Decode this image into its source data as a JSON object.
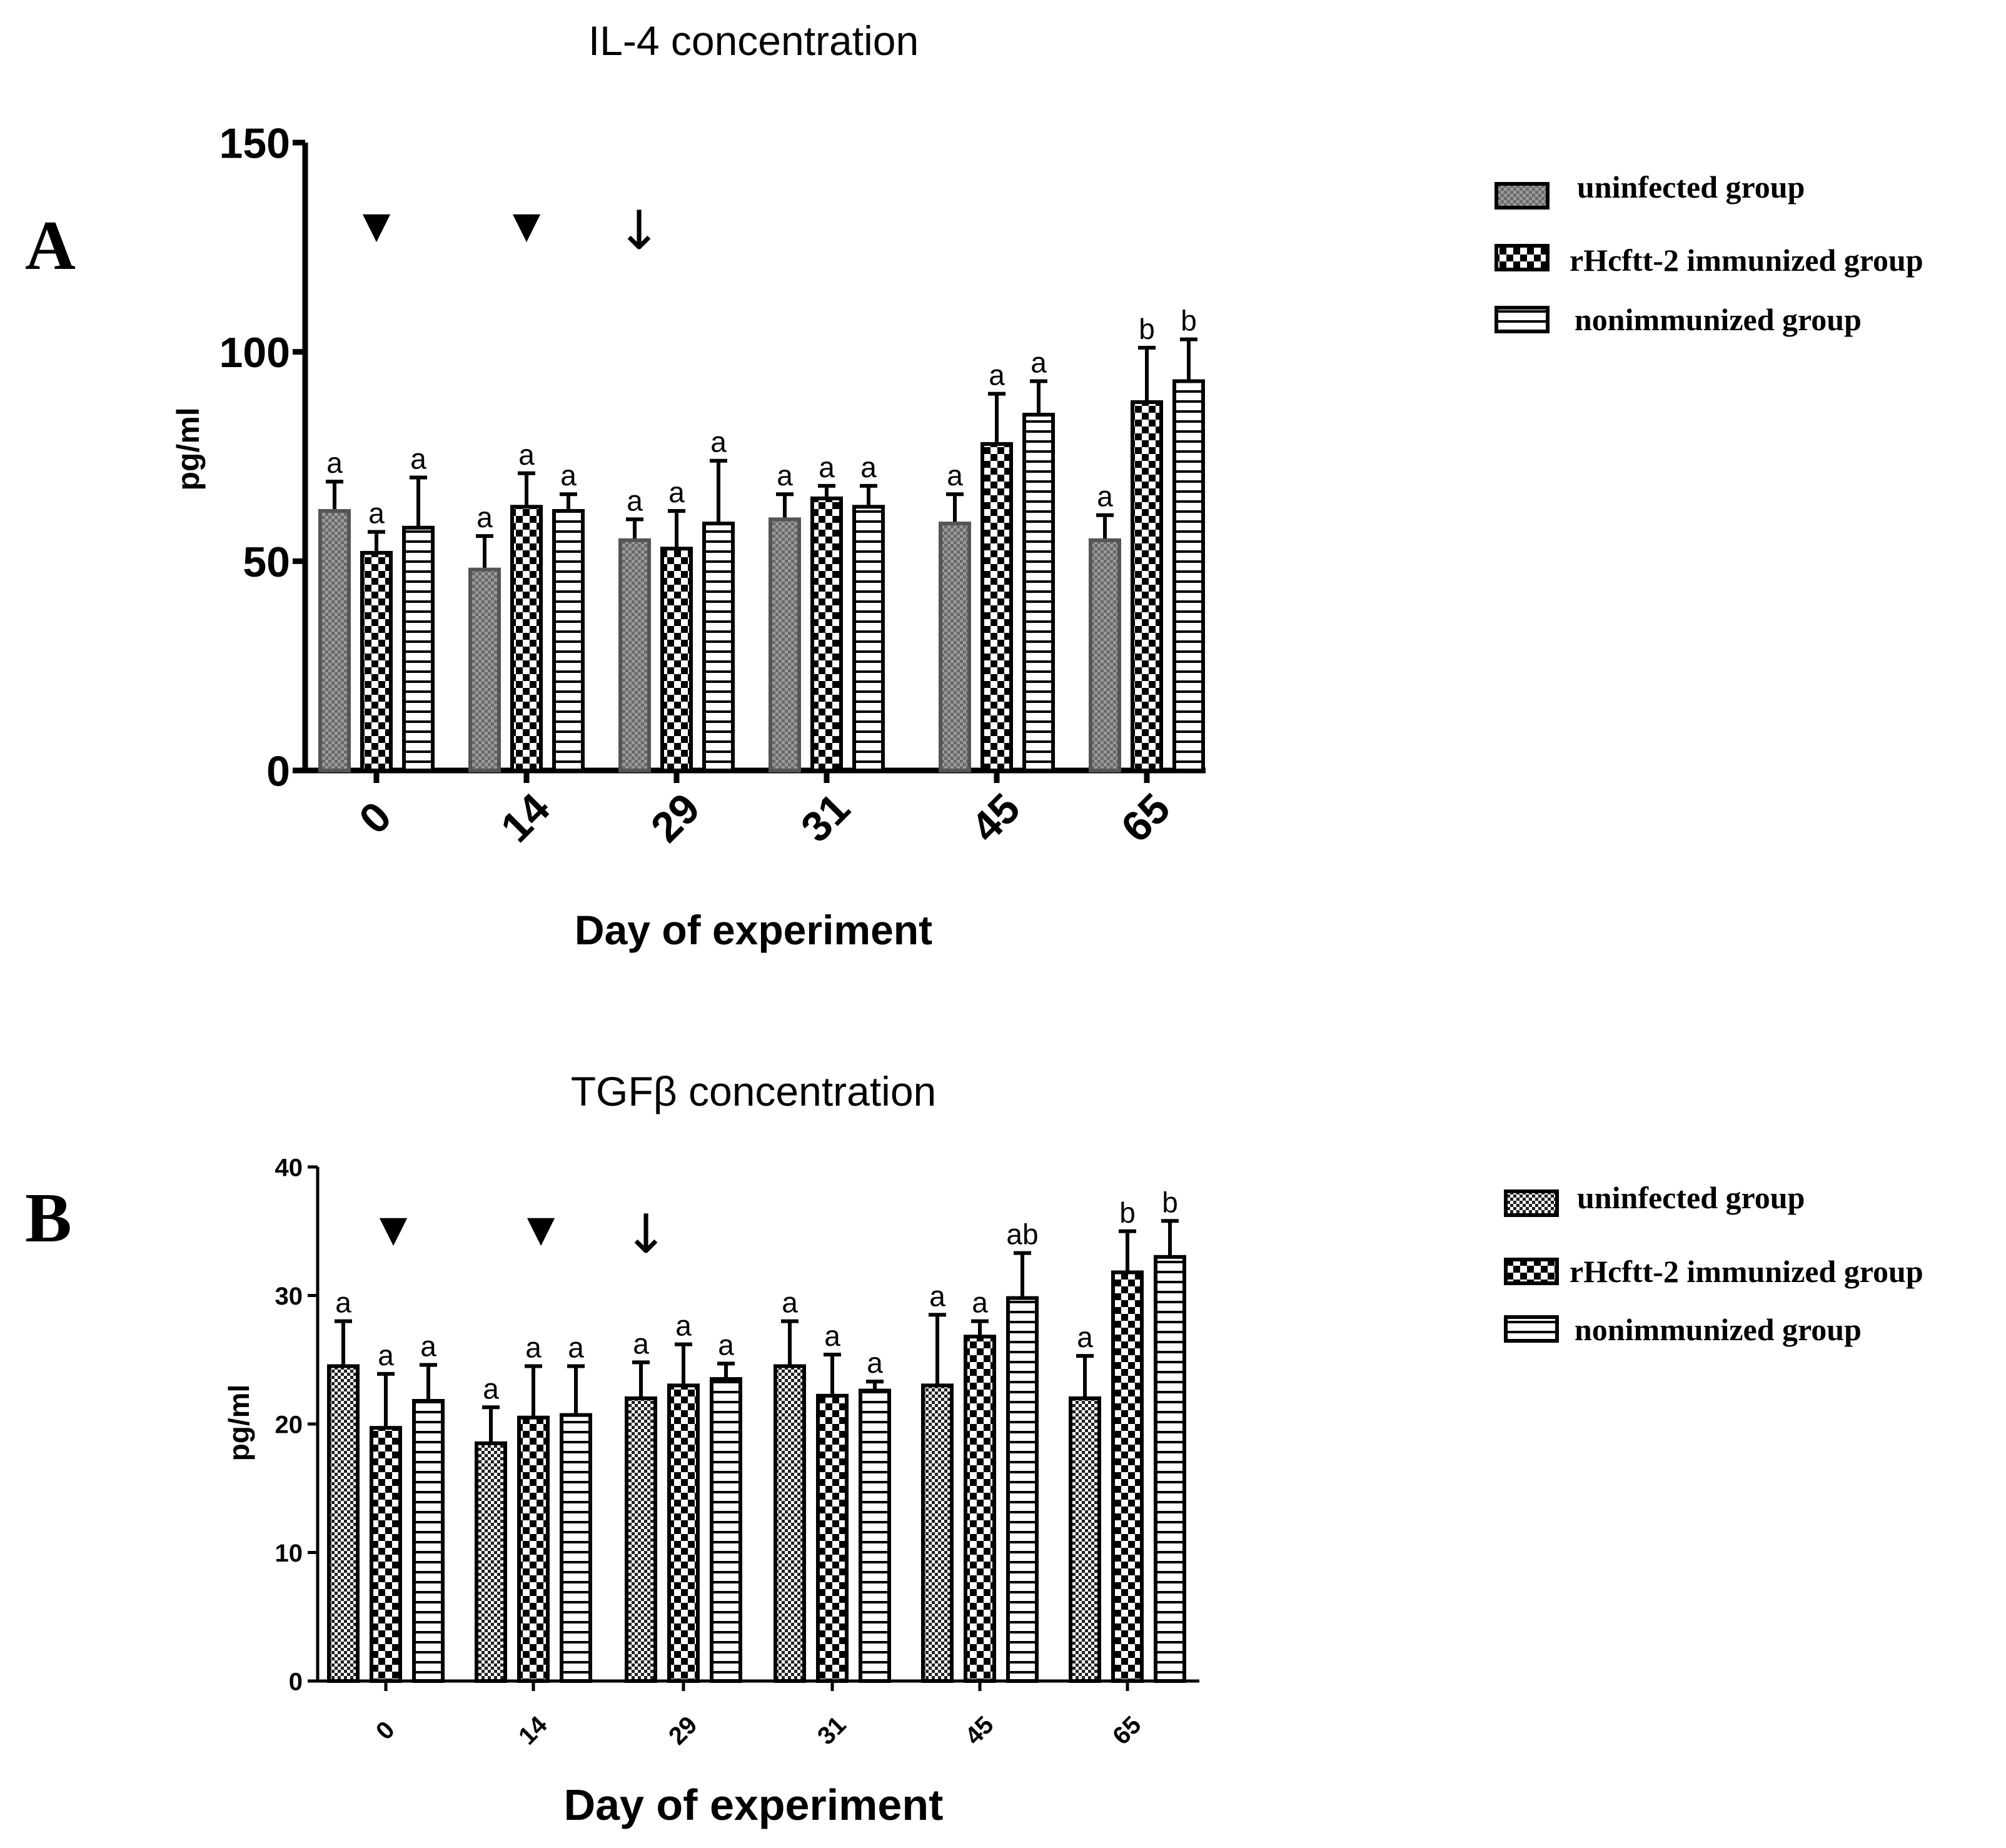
{
  "chart_data": [
    {
      "panel": "A",
      "title": "IL-4 concentration",
      "type": "bar",
      "ylabel": "pg/ml",
      "xlabel": "Day of experiment",
      "ylim": [
        0,
        150
      ],
      "yticks": [
        0,
        50,
        100,
        150
      ],
      "categories": [
        "0",
        "14",
        "29",
        "31",
        "45",
        "65"
      ],
      "series": [
        {
          "name": "uninfected group",
          "values": [
            62,
            48,
            55,
            60,
            59,
            55
          ],
          "errors": [
            7,
            8,
            5,
            6,
            7,
            6
          ],
          "labels": [
            "a",
            "a",
            "a",
            "a",
            "a",
            "a"
          ]
        },
        {
          "name": "rHcftt-2 immunized group",
          "values": [
            52,
            63,
            53,
            65,
            78,
            88
          ],
          "errors": [
            5,
            8,
            9,
            3,
            12,
            13
          ],
          "labels": [
            "a",
            "a",
            "a",
            "a",
            "a",
            "b"
          ]
        },
        {
          "name": "nonimmunized group",
          "values": [
            58,
            62,
            59,
            63,
            85,
            93
          ],
          "errors": [
            12,
            4,
            15,
            5,
            8,
            10
          ],
          "labels": [
            "a",
            "a",
            "a",
            "a",
            "a",
            "b"
          ]
        }
      ],
      "markers": [
        {
          "type": "arrowhead",
          "glyph": "▼",
          "at": "0"
        },
        {
          "type": "arrowhead",
          "glyph": "▼",
          "at": "14"
        },
        {
          "type": "arrow",
          "glyph": "↓",
          "at": "29"
        }
      ]
    },
    {
      "panel": "B",
      "title": "TGFβ concentration",
      "type": "bar",
      "ylabel": "pg/ml",
      "xlabel": "Day of experiment",
      "ylim": [
        0,
        40
      ],
      "yticks": [
        0,
        10,
        20,
        30,
        40
      ],
      "categories": [
        "0",
        "14",
        "29",
        "31",
        "45",
        "65"
      ],
      "series": [
        {
          "name": "uninfected group",
          "values": [
            24.5,
            18.5,
            22,
            24.5,
            23,
            22
          ],
          "errors": [
            3.5,
            2.8,
            2.8,
            3.5,
            5.5,
            3.3
          ],
          "labels": [
            "a",
            "a",
            "a",
            "a",
            "a",
            "a"
          ]
        },
        {
          "name": "rHcftt-2 immunized group",
          "values": [
            19.7,
            20.5,
            23,
            22.2,
            26.8,
            31.8
          ],
          "errors": [
            4.2,
            4,
            3.2,
            3.2,
            1.2,
            3.2
          ],
          "labels": [
            "a",
            "a",
            "a",
            "a",
            "a",
            "b"
          ]
        },
        {
          "name": "nonimmunized group",
          "values": [
            21.8,
            20.7,
            23.5,
            22.6,
            29.8,
            33
          ],
          "errors": [
            2.8,
            3.8,
            1.2,
            0.7,
            3.5,
            2.8
          ],
          "labels": [
            "a",
            "a",
            "a",
            "a",
            "ab",
            "b"
          ]
        }
      ],
      "markers": [
        {
          "type": "arrowhead",
          "glyph": "▼",
          "at": "0"
        },
        {
          "type": "arrowhead",
          "glyph": "▼",
          "at": "14"
        },
        {
          "type": "arrow",
          "glyph": "↓",
          "at": "29"
        }
      ]
    }
  ]
}
